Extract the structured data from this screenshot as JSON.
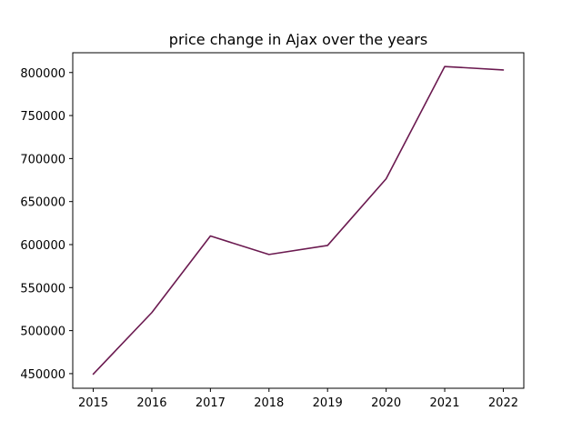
{
  "chart_data": {
    "type": "line",
    "title": "price change in Ajax over the years",
    "xlabel": "",
    "ylabel": "",
    "x": [
      2015,
      2016,
      2017,
      2018,
      2019,
      2020,
      2021,
      2022
    ],
    "series": [
      {
        "color": "#6b1a50",
        "values": [
          449500,
          521000,
          610000,
          588500,
          599000,
          676500,
          807000,
          803000
        ]
      }
    ],
    "xlim": [
      2014.65,
      2022.35
    ],
    "ylim": [
      433000,
      823000
    ],
    "x_ticks": [
      2015,
      2016,
      2017,
      2018,
      2019,
      2020,
      2021,
      2022
    ],
    "y_ticks": [
      450000,
      500000,
      550000,
      600000,
      650000,
      700000,
      750000,
      800000
    ],
    "grid": false,
    "legend": "none"
  }
}
